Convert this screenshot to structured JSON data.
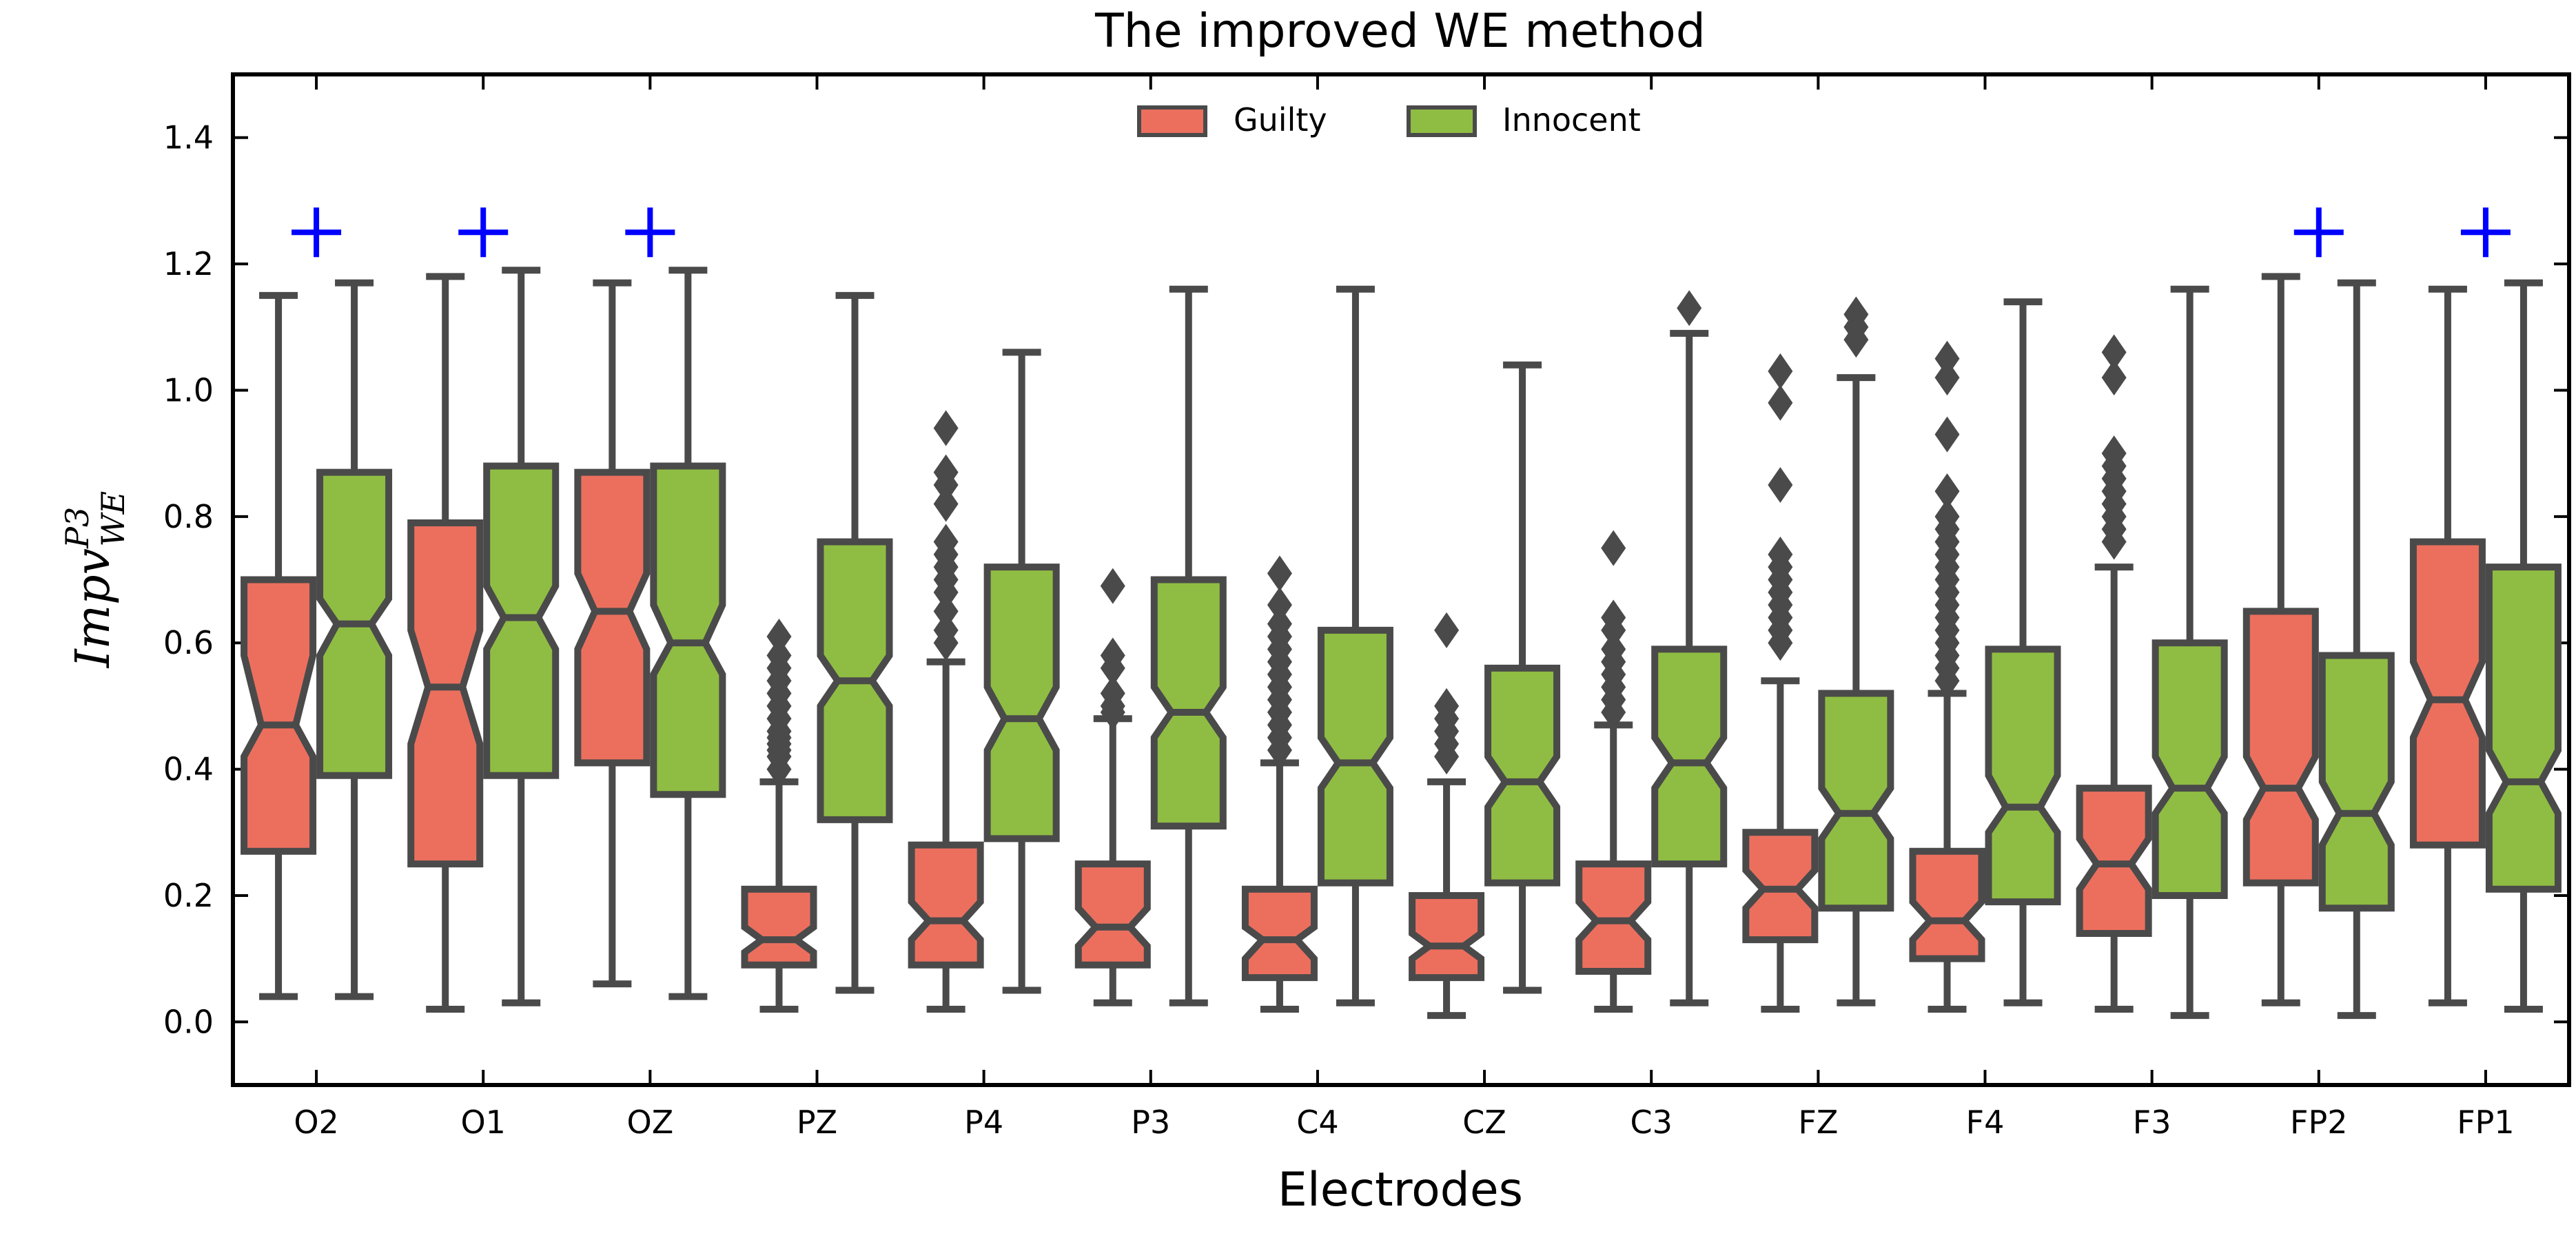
{
  "chart_data": {
    "type": "boxplot",
    "title": "The improved WE method",
    "xlabel": "Electrodes",
    "ylabel": {
      "base": "Impv",
      "sub": "WE",
      "sup": "P3"
    },
    "ylim": [
      -0.1,
      1.5
    ],
    "yticks": [
      "0.0",
      "0.2",
      "0.4",
      "0.6",
      "0.8",
      "1.0",
      "1.2",
      "1.4"
    ],
    "grid": false,
    "legend_position": "top-center",
    "notched": true,
    "categories": [
      "O2",
      "O1",
      "OZ",
      "PZ",
      "P4",
      "P3",
      "C4",
      "CZ",
      "C3",
      "FZ",
      "F4",
      "F3",
      "FP2",
      "FP1"
    ],
    "significance_marker": "+",
    "significance_y": 1.25,
    "significant": [
      true,
      true,
      true,
      false,
      false,
      false,
      false,
      false,
      false,
      false,
      false,
      false,
      true,
      true
    ],
    "colors": {
      "Guilty": "#ec6f5e",
      "Innocent": "#8fbd43",
      "edge": "#4a4a4a",
      "marker": "#0000ff"
    },
    "series": [
      {
        "name": "Guilty",
        "boxes": [
          {
            "q1": 0.27,
            "median": 0.47,
            "q3": 0.7,
            "notch_lo": 0.42,
            "notch_hi": 0.58,
            "whislo": 0.04,
            "whishi": 1.15,
            "fliers": []
          },
          {
            "q1": 0.25,
            "median": 0.53,
            "q3": 0.79,
            "notch_lo": 0.44,
            "notch_hi": 0.62,
            "whislo": 0.02,
            "whishi": 1.18,
            "fliers": []
          },
          {
            "q1": 0.41,
            "median": 0.65,
            "q3": 0.87,
            "notch_lo": 0.59,
            "notch_hi": 0.71,
            "whislo": 0.06,
            "whishi": 1.17,
            "fliers": []
          },
          {
            "q1": 0.09,
            "median": 0.13,
            "q3": 0.21,
            "notch_lo": 0.11,
            "notch_hi": 0.15,
            "whislo": 0.02,
            "whishi": 0.38,
            "fliers": [
              0.4,
              0.42,
              0.43,
              0.44,
              0.45,
              0.46,
              0.48,
              0.5,
              0.52,
              0.54,
              0.56,
              0.58,
              0.61
            ]
          },
          {
            "q1": 0.09,
            "median": 0.16,
            "q3": 0.28,
            "notch_lo": 0.13,
            "notch_hi": 0.19,
            "whislo": 0.02,
            "whishi": 0.57,
            "fliers": [
              0.6,
              0.62,
              0.65,
              0.68,
              0.7,
              0.72,
              0.74,
              0.76,
              0.82,
              0.85,
              0.87,
              0.94
            ]
          },
          {
            "q1": 0.09,
            "median": 0.15,
            "q3": 0.25,
            "notch_lo": 0.12,
            "notch_hi": 0.18,
            "whislo": 0.03,
            "whishi": 0.48,
            "fliers": [
              0.49,
              0.5,
              0.52,
              0.56,
              0.58,
              0.69
            ]
          },
          {
            "q1": 0.07,
            "median": 0.13,
            "q3": 0.21,
            "notch_lo": 0.1,
            "notch_hi": 0.15,
            "whislo": 0.02,
            "whishi": 0.41,
            "fliers": [
              0.43,
              0.45,
              0.47,
              0.49,
              0.51,
              0.53,
              0.55,
              0.57,
              0.59,
              0.61,
              0.63,
              0.66,
              0.71
            ]
          },
          {
            "q1": 0.07,
            "median": 0.12,
            "q3": 0.2,
            "notch_lo": 0.1,
            "notch_hi": 0.14,
            "whislo": 0.01,
            "whishi": 0.38,
            "fliers": [
              0.42,
              0.44,
              0.46,
              0.48,
              0.5,
              0.62
            ]
          },
          {
            "q1": 0.08,
            "median": 0.16,
            "q3": 0.25,
            "notch_lo": 0.13,
            "notch_hi": 0.19,
            "whislo": 0.02,
            "whishi": 0.47,
            "fliers": [
              0.49,
              0.51,
              0.53,
              0.55,
              0.57,
              0.59,
              0.62,
              0.64,
              0.75
            ]
          },
          {
            "q1": 0.13,
            "median": 0.21,
            "q3": 0.3,
            "notch_lo": 0.18,
            "notch_hi": 0.24,
            "whislo": 0.02,
            "whishi": 0.54,
            "fliers": [
              0.6,
              0.62,
              0.64,
              0.66,
              0.68,
              0.7,
              0.72,
              0.74,
              0.85,
              0.98,
              1.03
            ]
          },
          {
            "q1": 0.1,
            "median": 0.16,
            "q3": 0.27,
            "notch_lo": 0.13,
            "notch_hi": 0.19,
            "whislo": 0.02,
            "whishi": 0.52,
            "fliers": [
              0.54,
              0.56,
              0.58,
              0.6,
              0.62,
              0.64,
              0.66,
              0.68,
              0.7,
              0.72,
              0.74,
              0.76,
              0.78,
              0.8,
              0.84,
              0.93,
              1.02,
              1.05
            ]
          },
          {
            "q1": 0.14,
            "median": 0.25,
            "q3": 0.37,
            "notch_lo": 0.21,
            "notch_hi": 0.29,
            "whislo": 0.02,
            "whishi": 0.72,
            "fliers": [
              0.76,
              0.78,
              0.8,
              0.82,
              0.84,
              0.86,
              0.88,
              0.9,
              1.02,
              1.06
            ]
          },
          {
            "q1": 0.22,
            "median": 0.37,
            "q3": 0.65,
            "notch_lo": 0.32,
            "notch_hi": 0.42,
            "whislo": 0.03,
            "whishi": 1.18,
            "fliers": []
          },
          {
            "q1": 0.28,
            "median": 0.51,
            "q3": 0.76,
            "notch_lo": 0.45,
            "notch_hi": 0.57,
            "whislo": 0.03,
            "whishi": 1.16,
            "fliers": []
          }
        ]
      },
      {
        "name": "Innocent",
        "boxes": [
          {
            "q1": 0.39,
            "median": 0.63,
            "q3": 0.87,
            "notch_lo": 0.58,
            "notch_hi": 0.67,
            "whislo": 0.04,
            "whishi": 1.17,
            "fliers": []
          },
          {
            "q1": 0.39,
            "median": 0.64,
            "q3": 0.88,
            "notch_lo": 0.59,
            "notch_hi": 0.69,
            "whislo": 0.03,
            "whishi": 1.19,
            "fliers": []
          },
          {
            "q1": 0.36,
            "median": 0.6,
            "q3": 0.88,
            "notch_lo": 0.55,
            "notch_hi": 0.66,
            "whislo": 0.04,
            "whishi": 1.19,
            "fliers": []
          },
          {
            "q1": 0.32,
            "median": 0.54,
            "q3": 0.76,
            "notch_lo": 0.5,
            "notch_hi": 0.58,
            "whislo": 0.05,
            "whishi": 1.15,
            "fliers": []
          },
          {
            "q1": 0.29,
            "median": 0.48,
            "q3": 0.72,
            "notch_lo": 0.43,
            "notch_hi": 0.53,
            "whislo": 0.05,
            "whishi": 1.06,
            "fliers": []
          },
          {
            "q1": 0.31,
            "median": 0.49,
            "q3": 0.7,
            "notch_lo": 0.45,
            "notch_hi": 0.53,
            "whislo": 0.03,
            "whishi": 1.16,
            "fliers": []
          },
          {
            "q1": 0.22,
            "median": 0.41,
            "q3": 0.62,
            "notch_lo": 0.37,
            "notch_hi": 0.45,
            "whislo": 0.03,
            "whishi": 1.16,
            "fliers": []
          },
          {
            "q1": 0.22,
            "median": 0.38,
            "q3": 0.56,
            "notch_lo": 0.34,
            "notch_hi": 0.42,
            "whislo": 0.05,
            "whishi": 1.04,
            "fliers": []
          },
          {
            "q1": 0.25,
            "median": 0.41,
            "q3": 0.59,
            "notch_lo": 0.37,
            "notch_hi": 0.45,
            "whislo": 0.03,
            "whishi": 1.09,
            "fliers": [
              1.13
            ]
          },
          {
            "q1": 0.18,
            "median": 0.33,
            "q3": 0.52,
            "notch_lo": 0.29,
            "notch_hi": 0.37,
            "whislo": 0.03,
            "whishi": 1.02,
            "fliers": [
              1.08,
              1.1,
              1.12
            ]
          },
          {
            "q1": 0.19,
            "median": 0.34,
            "q3": 0.59,
            "notch_lo": 0.3,
            "notch_hi": 0.39,
            "whislo": 0.03,
            "whishi": 1.14,
            "fliers": []
          },
          {
            "q1": 0.2,
            "median": 0.37,
            "q3": 0.6,
            "notch_lo": 0.33,
            "notch_hi": 0.42,
            "whislo": 0.01,
            "whishi": 1.16,
            "fliers": []
          },
          {
            "q1": 0.18,
            "median": 0.33,
            "q3": 0.58,
            "notch_lo": 0.28,
            "notch_hi": 0.38,
            "whislo": 0.01,
            "whishi": 1.17,
            "fliers": []
          },
          {
            "q1": 0.21,
            "median": 0.38,
            "q3": 0.72,
            "notch_lo": 0.33,
            "notch_hi": 0.43,
            "whislo": 0.02,
            "whishi": 1.17,
            "fliers": []
          }
        ]
      }
    ]
  }
}
